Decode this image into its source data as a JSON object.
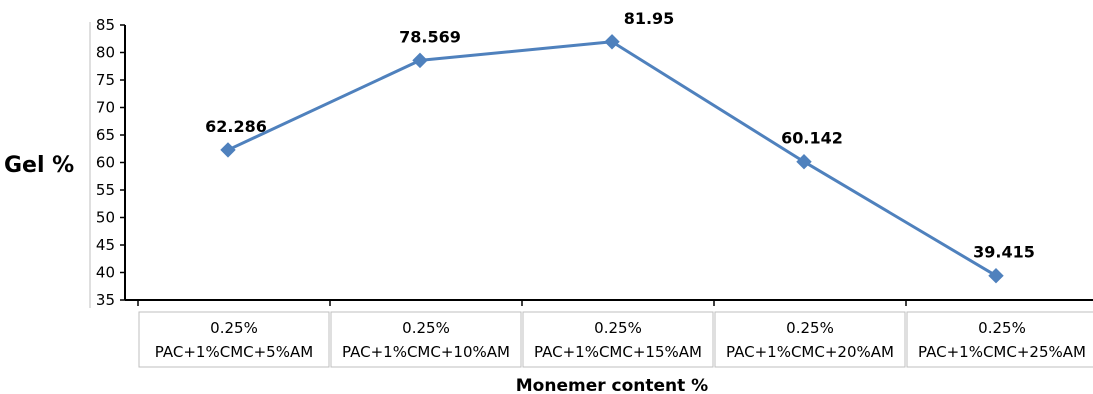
{
  "chart_data": {
    "type": "line",
    "categories": [
      [
        "0.25%",
        "PAC+1%CMC+5%AM"
      ],
      [
        "0.25%",
        "PAC+1%CMC+10%AM"
      ],
      [
        "0.25%",
        "PAC+1%CMC+15%AM"
      ],
      [
        "0.25%",
        "PAC+1%CMC+20%AM"
      ],
      [
        "0.25%",
        "PAC+1%CMC+25%AM"
      ]
    ],
    "series": [
      {
        "values": [
          62.286,
          78.569,
          81.95,
          60.142,
          39.415
        ]
      }
    ],
    "data_labels": [
      "62.286",
      "78.569",
      "81.95",
      "60.142",
      "39.415"
    ],
    "xlabel": "Monemer content %",
    "ylabel": "Gel %",
    "ylim": [
      35,
      85
    ],
    "yticks": [
      "35",
      "40",
      "45",
      "50",
      "55",
      "60",
      "65",
      "70",
      "75",
      "80",
      "85"
    ],
    "grid": false,
    "legend": "none",
    "colors": {
      "line": "#4F81BD",
      "marker": "#4F81BD",
      "axis": "#000000",
      "category_border": "#BFBFBF"
    }
  }
}
